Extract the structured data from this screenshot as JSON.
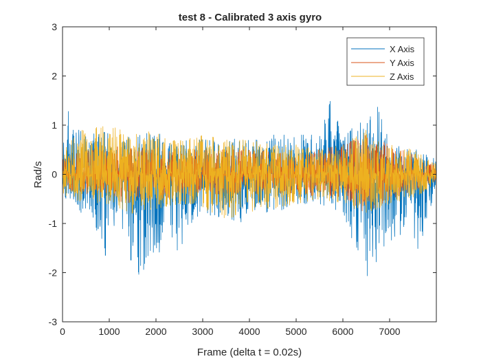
{
  "chart_data": {
    "type": "line",
    "title": "test 8 - Calibrated 3 axis gyro",
    "xlabel": "Frame (delta t = 0.02s)",
    "ylabel": "Rad/s",
    "xlim": [
      0,
      8000
    ],
    "ylim": [
      -3,
      3
    ],
    "xticks": [
      0,
      1000,
      2000,
      3000,
      4000,
      5000,
      6000,
      7000
    ],
    "yticks": [
      -3,
      -2,
      -1,
      0,
      1,
      2,
      3
    ],
    "xtick_labels": [
      "0",
      "1000",
      "2000",
      "3000",
      "4000",
      "5000",
      "6000",
      "7000"
    ],
    "ytick_labels": [
      "-3",
      "-2",
      "-1",
      "0",
      "1",
      "2",
      "3"
    ],
    "grid": false,
    "legend_position": "top-right",
    "num_frames": 8000,
    "series": [
      {
        "name": "X Axis",
        "color": "#0072BD",
        "envelope": [
          {
            "frame": 0,
            "min": -0.3,
            "max": 0.5
          },
          {
            "frame": 100,
            "min": -0.6,
            "max": 1.4
          },
          {
            "frame": 200,
            "min": -0.5,
            "max": 0.9
          },
          {
            "frame": 400,
            "min": -0.8,
            "max": 0.9
          },
          {
            "frame": 600,
            "min": -0.7,
            "max": 0.8
          },
          {
            "frame": 900,
            "min": -1.7,
            "max": 0.9
          },
          {
            "frame": 1200,
            "min": -0.8,
            "max": 0.6
          },
          {
            "frame": 1350,
            "min": -1.9,
            "max": 0.7
          },
          {
            "frame": 1600,
            "min": -2.3,
            "max": 0.9
          },
          {
            "frame": 1900,
            "min": -1.5,
            "max": 0.8
          },
          {
            "frame": 2000,
            "min": -1.8,
            "max": 0.9
          },
          {
            "frame": 2200,
            "min": -1.2,
            "max": 0.7
          },
          {
            "frame": 2500,
            "min": -1.6,
            "max": 0.6
          },
          {
            "frame": 2800,
            "min": -0.9,
            "max": 0.8
          },
          {
            "frame": 3000,
            "min": -0.8,
            "max": 0.7
          },
          {
            "frame": 3500,
            "min": -0.9,
            "max": 0.7
          },
          {
            "frame": 3800,
            "min": -1.0,
            "max": 0.8
          },
          {
            "frame": 4000,
            "min": -0.7,
            "max": 0.7
          },
          {
            "frame": 4500,
            "min": -0.8,
            "max": 0.8
          },
          {
            "frame": 5000,
            "min": -0.6,
            "max": 0.8
          },
          {
            "frame": 5500,
            "min": -0.6,
            "max": 0.8
          },
          {
            "frame": 5800,
            "min": -0.7,
            "max": 1.8
          },
          {
            "frame": 6000,
            "min": -0.9,
            "max": 0.8
          },
          {
            "frame": 6300,
            "min": -1.6,
            "max": 1.1
          },
          {
            "frame": 6500,
            "min": -2.1,
            "max": 1.2
          },
          {
            "frame": 6700,
            "min": -1.8,
            "max": 1.5
          },
          {
            "frame": 6900,
            "min": -1.5,
            "max": 0.9
          },
          {
            "frame": 7100,
            "min": -1.4,
            "max": 0.6
          },
          {
            "frame": 7400,
            "min": -1.0,
            "max": 0.5
          },
          {
            "frame": 7600,
            "min": -1.6,
            "max": 0.5
          },
          {
            "frame": 8000,
            "min": -0.3,
            "max": 0.3
          }
        ]
      },
      {
        "name": "Y Axis",
        "color": "#D95319",
        "envelope": [
          {
            "frame": 0,
            "min": -0.3,
            "max": 0.3
          },
          {
            "frame": 500,
            "min": -0.4,
            "max": 0.5
          },
          {
            "frame": 1000,
            "min": -0.4,
            "max": 0.5
          },
          {
            "frame": 1300,
            "min": -0.6,
            "max": 0.6
          },
          {
            "frame": 2000,
            "min": -0.5,
            "max": 0.5
          },
          {
            "frame": 3000,
            "min": -0.4,
            "max": 0.5
          },
          {
            "frame": 4000,
            "min": -0.4,
            "max": 0.5
          },
          {
            "frame": 5000,
            "min": -0.4,
            "max": 0.4
          },
          {
            "frame": 6000,
            "min": -0.5,
            "max": 0.6
          },
          {
            "frame": 6500,
            "min": -0.8,
            "max": 0.8
          },
          {
            "frame": 7000,
            "min": -0.5,
            "max": 0.6
          },
          {
            "frame": 8000,
            "min": -0.2,
            "max": 0.2
          }
        ]
      },
      {
        "name": "Z Axis",
        "color": "#EDB120",
        "envelope": [
          {
            "frame": 0,
            "min": -0.4,
            "max": 0.5
          },
          {
            "frame": 400,
            "min": -0.6,
            "max": 0.9
          },
          {
            "frame": 1000,
            "min": -0.6,
            "max": 1.0
          },
          {
            "frame": 1500,
            "min": -0.8,
            "max": 0.8
          },
          {
            "frame": 2000,
            "min": -0.7,
            "max": 0.9
          },
          {
            "frame": 2500,
            "min": -0.6,
            "max": 0.7
          },
          {
            "frame": 3000,
            "min": -0.7,
            "max": 0.8
          },
          {
            "frame": 3500,
            "min": -0.9,
            "max": 0.7
          },
          {
            "frame": 4000,
            "min": -0.8,
            "max": 0.7
          },
          {
            "frame": 4500,
            "min": -0.7,
            "max": 0.6
          },
          {
            "frame": 5000,
            "min": -0.6,
            "max": 0.6
          },
          {
            "frame": 5500,
            "min": -0.5,
            "max": 0.5
          },
          {
            "frame": 6000,
            "min": -0.6,
            "max": 0.6
          },
          {
            "frame": 6500,
            "min": -0.8,
            "max": 0.9
          },
          {
            "frame": 7000,
            "min": -0.6,
            "max": 0.6
          },
          {
            "frame": 7500,
            "min": -0.5,
            "max": 0.5
          },
          {
            "frame": 8000,
            "min": -0.2,
            "max": 0.2
          }
        ]
      }
    ]
  }
}
